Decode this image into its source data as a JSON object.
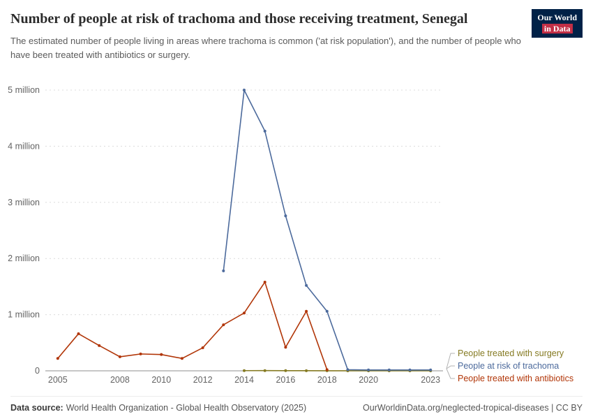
{
  "logo": {
    "line1": "Our World",
    "line2": "in Data",
    "bg": "#002147",
    "accent": "#c22f46",
    "fg": "#ffffff"
  },
  "chart_data": {
    "type": "line",
    "title": "Number of people at risk of trachoma and those receiving treatment, Senegal",
    "subtitle": "The estimated number of people living in areas where trachoma is common ('at risk population'), and the number of people who have been treated with antibiotics or surgery.",
    "xlim": [
      2004.4,
      2023.6
    ],
    "ylim": [
      0,
      5000000
    ],
    "grid": "horizontal-dashed",
    "legend_position": "bottom-right",
    "axis_color": "#8f8f8f",
    "gridline_color": "#dcdcdc",
    "tick_label_color": "#636363",
    "x_ticks": [
      2005,
      2008,
      2010,
      2012,
      2014,
      2016,
      2018,
      2020,
      2023
    ],
    "y_ticks": [
      {
        "value": 0,
        "label": "0"
      },
      {
        "value": 1000000,
        "label": "1 million"
      },
      {
        "value": 2000000,
        "label": "2 million"
      },
      {
        "value": 3000000,
        "label": "3 million"
      },
      {
        "value": 4000000,
        "label": "4 million"
      },
      {
        "value": 5000000,
        "label": "5 million"
      }
    ],
    "series": [
      {
        "id": "surgery",
        "name": "People treated with surgery",
        "color": "#857a22",
        "points": [
          [
            2014,
            3000
          ],
          [
            2015,
            3500
          ],
          [
            2016,
            2500
          ],
          [
            2017,
            2000
          ],
          [
            2018,
            1200
          ],
          [
            2019,
            600
          ],
          [
            2020,
            400
          ],
          [
            2021,
            700
          ],
          [
            2022,
            500
          ],
          [
            2023,
            400
          ]
        ]
      },
      {
        "id": "at-risk",
        "name": "People at risk of trachoma",
        "color": "#4c6a9c",
        "points": [
          [
            2013,
            1780000
          ],
          [
            2014,
            5000000
          ],
          [
            2015,
            4270000
          ],
          [
            2016,
            2760000
          ],
          [
            2017,
            1520000
          ],
          [
            2018,
            1060000
          ],
          [
            2019,
            20000
          ],
          [
            2020,
            15000
          ],
          [
            2021,
            15000
          ],
          [
            2022,
            15000
          ],
          [
            2023,
            15000
          ]
        ]
      },
      {
        "id": "antibiotics",
        "name": "People treated with antibiotics",
        "color": "#b13507",
        "points": [
          [
            2005,
            220000
          ],
          [
            2006,
            660000
          ],
          [
            2007,
            450000
          ],
          [
            2008,
            250000
          ],
          [
            2009,
            300000
          ],
          [
            2010,
            290000
          ],
          [
            2011,
            220000
          ],
          [
            2012,
            410000
          ],
          [
            2013,
            820000
          ],
          [
            2014,
            1030000
          ],
          [
            2015,
            1580000
          ],
          [
            2016,
            420000
          ],
          [
            2017,
            1060000
          ],
          [
            2018,
            20000
          ]
        ]
      }
    ]
  },
  "footer": {
    "datasource_label": "Data source:",
    "datasource": "World Health Organization - Global Health Observatory (2025)",
    "link": "OurWorldinData.org/neglected-tropical-diseases | CC BY"
  }
}
